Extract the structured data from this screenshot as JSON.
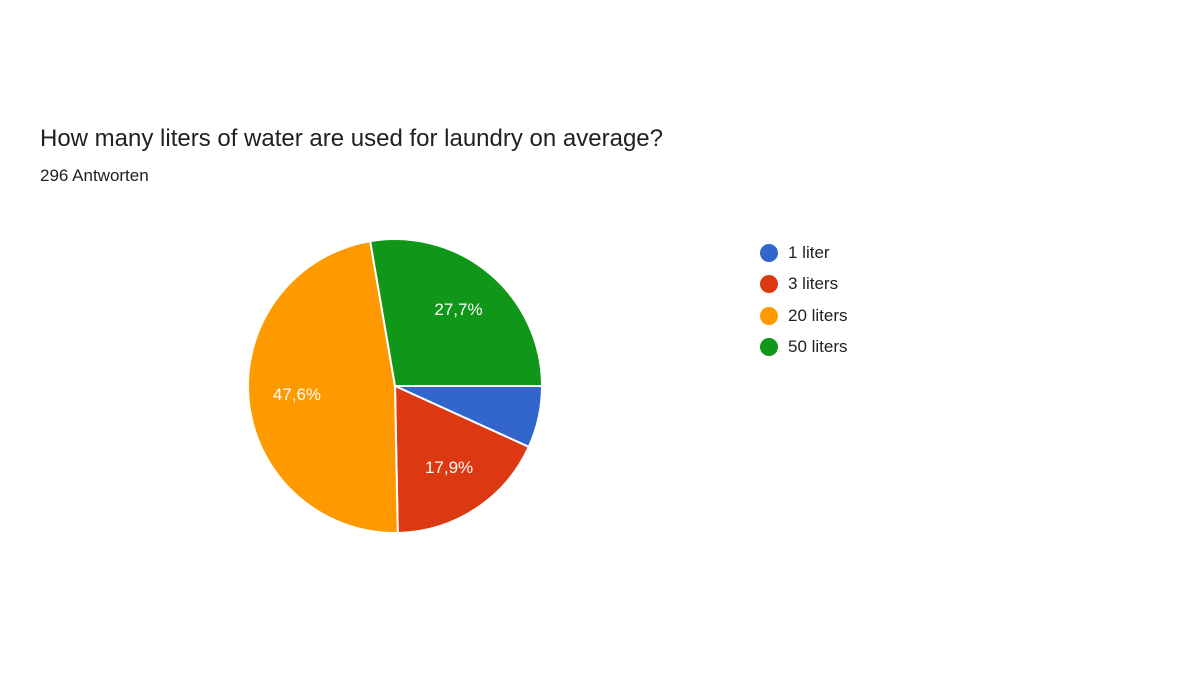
{
  "chart_data": {
    "type": "pie",
    "title": "How many liters of water are used for laundry on average?",
    "subtitle": "296 Antworten",
    "legend_position": "right",
    "slices": [
      {
        "label": "1 liter",
        "value": 6.8,
        "color": "#3366cc",
        "display": ""
      },
      {
        "label": "3 liters",
        "value": 17.9,
        "color": "#dc3912",
        "display": "17,9%"
      },
      {
        "label": "20 liters",
        "value": 47.6,
        "color": "#ff9900",
        "display": "47,6%"
      },
      {
        "label": "50 liters",
        "value": 27.7,
        "color": "#109618",
        "display": "27,7%"
      }
    ]
  }
}
